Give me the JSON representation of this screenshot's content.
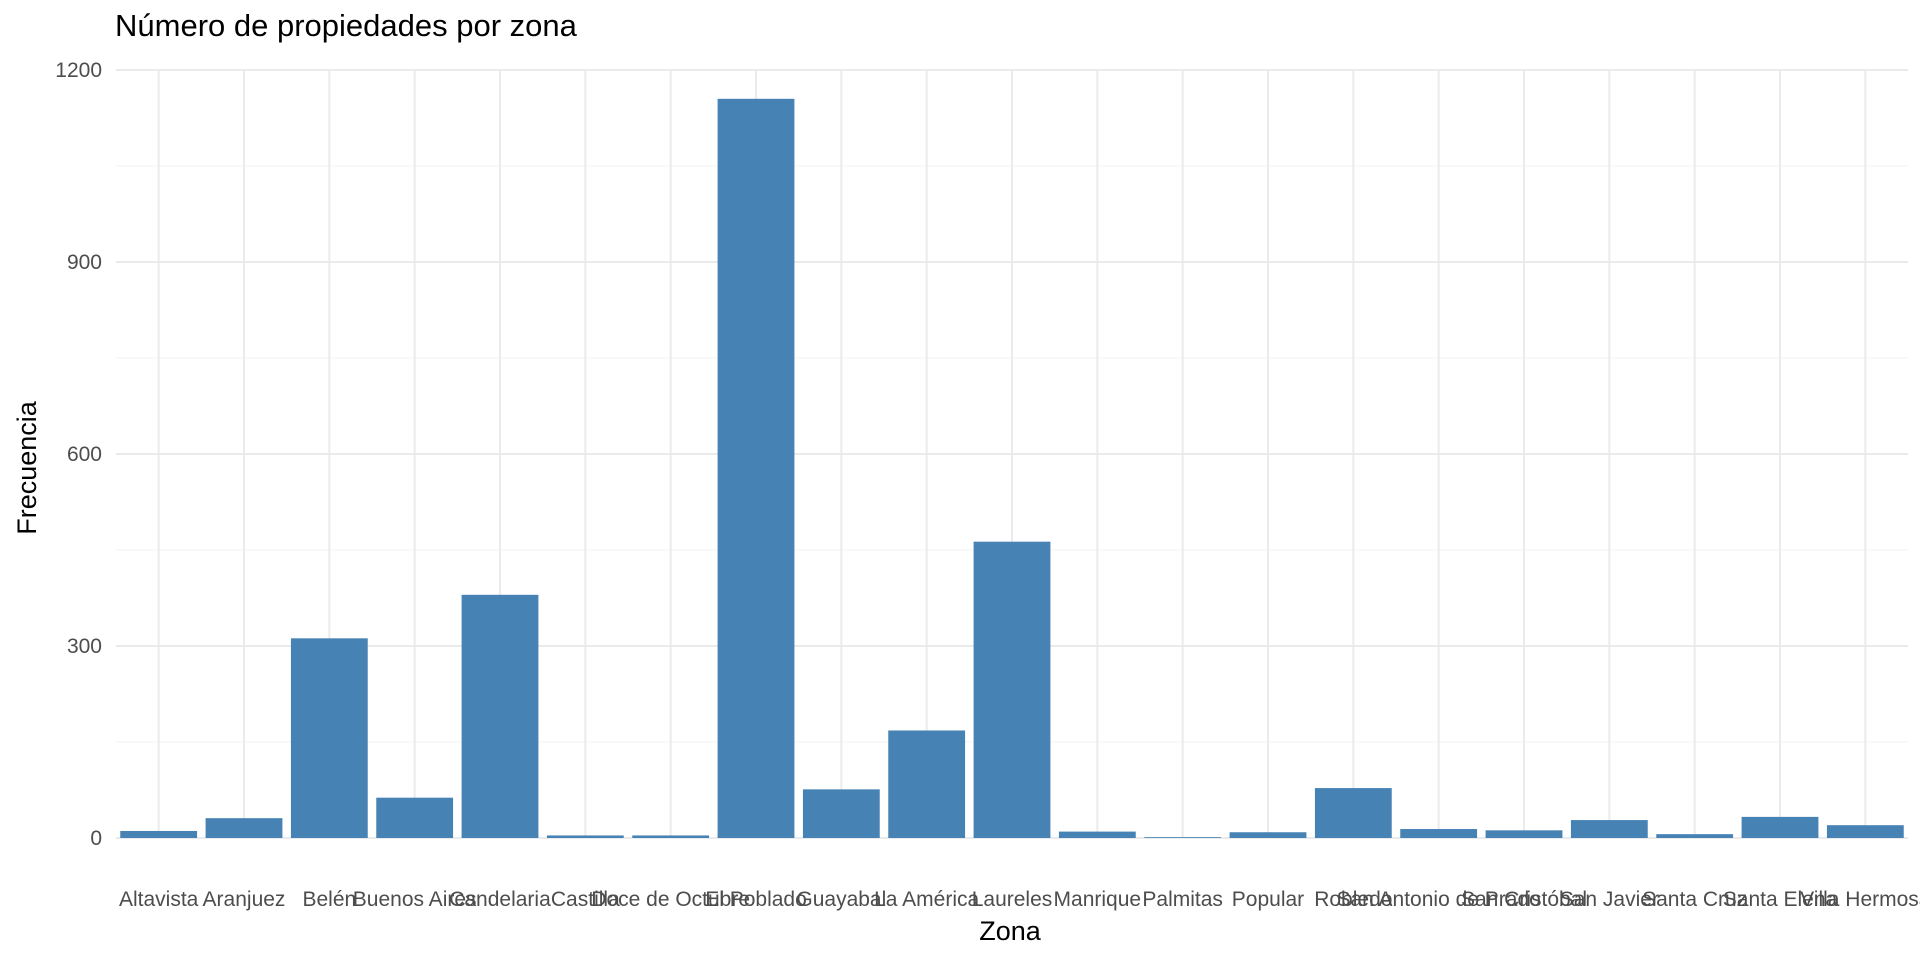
{
  "chart_data": {
    "type": "bar",
    "title": "Número de propiedades por zona",
    "xlabel": "Zona",
    "ylabel": "Frecuencia",
    "ylim": [
      0,
      1200
    ],
    "yticks": [
      0,
      300,
      600,
      900,
      1200
    ],
    "grid": true,
    "colors": {
      "bar": "#4682B4",
      "grid_major": "#EBEBEB",
      "grid_minor": "#F5F5F5"
    },
    "categories": [
      "Altavista",
      "Aranjuez",
      "Belén",
      "Buenos Aires",
      "Candelaria",
      "Castilla",
      "Doce de Octubre",
      "El Poblado",
      "Guayabal",
      "La América",
      "Laureles",
      "Manrique",
      "Palmitas",
      "Popular",
      "Robledo",
      "San Antonio de Prado",
      "San Cristóbal",
      "San Javier",
      "Santa Cruz",
      "Santa Elena",
      "Villa Hermosa"
    ],
    "values": [
      11,
      31,
      312,
      63,
      380,
      4,
      4,
      1155,
      76,
      168,
      463,
      10,
      1,
      9,
      78,
      14,
      12,
      28,
      6,
      33,
      20
    ]
  }
}
